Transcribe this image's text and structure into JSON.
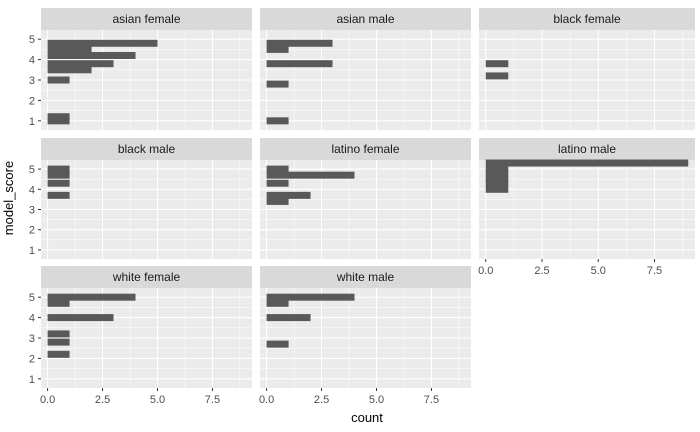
{
  "chart_data": {
    "type": "bar",
    "orientation": "horizontal",
    "histogram": true,
    "xlabel": "count",
    "ylabel": "model_score",
    "xlim": [
      -0.3,
      9.3
    ],
    "ylim": [
      0.55,
      5.45
    ],
    "x_ticks": [
      0,
      2.5,
      5,
      7.5
    ],
    "x_tick_labels": [
      "0.0",
      "2.5",
      "5.0",
      "7.5"
    ],
    "y_ticks": [
      1,
      2,
      3,
      4,
      5
    ],
    "y_tick_labels": [
      "1",
      "2",
      "3",
      "4",
      "5"
    ],
    "bin_width": 0.1667,
    "grid": true,
    "bar_color": "#595959",
    "facets": [
      {
        "label": "asian female",
        "bins": [
          {
            "y": 1.0,
            "count": 1
          },
          {
            "y": 1.2,
            "count": 1
          },
          {
            "y": 3.0,
            "count": 1
          },
          {
            "y": 3.5,
            "count": 2
          },
          {
            "y": 3.8,
            "count": 3
          },
          {
            "y": 4.2,
            "count": 4
          },
          {
            "y": 4.5,
            "count": 2
          },
          {
            "y": 4.8,
            "count": 5
          }
        ]
      },
      {
        "label": "asian male",
        "bins": [
          {
            "y": 1.0,
            "count": 1
          },
          {
            "y": 2.8,
            "count": 1
          },
          {
            "y": 3.8,
            "count": 3
          },
          {
            "y": 4.5,
            "count": 1
          },
          {
            "y": 4.8,
            "count": 3
          }
        ]
      },
      {
        "label": "black female",
        "bins": [
          {
            "y": 3.2,
            "count": 1
          },
          {
            "y": 3.8,
            "count": 1
          }
        ]
      },
      {
        "label": "black male",
        "bins": [
          {
            "y": 3.7,
            "count": 1
          },
          {
            "y": 4.3,
            "count": 1
          },
          {
            "y": 4.7,
            "count": 1
          },
          {
            "y": 5.0,
            "count": 1
          }
        ]
      },
      {
        "label": "latino female",
        "bins": [
          {
            "y": 3.4,
            "count": 1
          },
          {
            "y": 3.7,
            "count": 2
          },
          {
            "y": 4.3,
            "count": 1
          },
          {
            "y": 4.7,
            "count": 4
          },
          {
            "y": 5.0,
            "count": 1
          }
        ]
      },
      {
        "label": "latino male",
        "bins": [
          {
            "y": 4.0,
            "count": 1
          },
          {
            "y": 4.3,
            "count": 1
          },
          {
            "y": 4.5,
            "count": 1
          },
          {
            "y": 4.8,
            "count": 1
          },
          {
            "y": 5.0,
            "count": 1
          },
          {
            "y": 5.3,
            "count": 9
          }
        ]
      },
      {
        "label": "white female",
        "bins": [
          {
            "y": 2.2,
            "count": 1
          },
          {
            "y": 2.8,
            "count": 1
          },
          {
            "y": 3.2,
            "count": 1
          },
          {
            "y": 4.0,
            "count": 3
          },
          {
            "y": 4.7,
            "count": 1
          },
          {
            "y": 5.0,
            "count": 4
          }
        ]
      },
      {
        "label": "white male",
        "bins": [
          {
            "y": 2.7,
            "count": 1
          },
          {
            "y": 4.0,
            "count": 2
          },
          {
            "y": 4.7,
            "count": 1
          },
          {
            "y": 5.0,
            "count": 4
          }
        ]
      }
    ]
  }
}
